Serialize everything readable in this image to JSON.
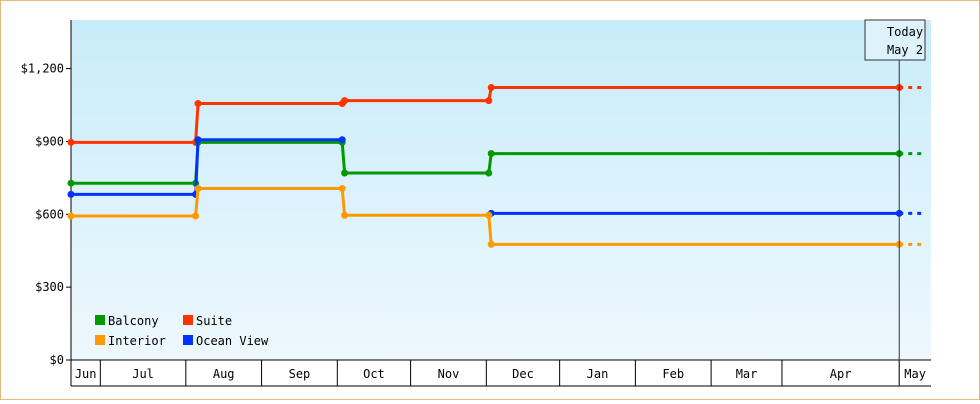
{
  "chart_data": {
    "type": "line",
    "step": true,
    "y_ticks": [
      "$0",
      "$300",
      "$600",
      "$900",
      "$1,200"
    ],
    "y_tick_values": [
      0,
      300,
      600,
      900,
      1200
    ],
    "ylim": [
      0,
      1400
    ],
    "x_range": [
      "2019-05-29",
      "2020-05-15"
    ],
    "months": [
      {
        "label": "Jun",
        "start": "2019-05-29",
        "end": "2019-06-10"
      },
      {
        "label": "Jul",
        "start": "2019-06-10",
        "end": "2019-07-15"
      },
      {
        "label": "Aug",
        "start": "2019-07-15",
        "end": "2019-08-15"
      },
      {
        "label": "Sep",
        "start": "2019-08-15",
        "end": "2019-09-15"
      },
      {
        "label": "Oct",
        "start": "2019-09-15",
        "end": "2019-10-15"
      },
      {
        "label": "Nov",
        "start": "2019-10-15",
        "end": "2019-11-15"
      },
      {
        "label": "Dec",
        "start": "2019-11-15",
        "end": "2019-12-15"
      },
      {
        "label": "Jan",
        "start": "2019-12-15",
        "end": "2020-01-15"
      },
      {
        "label": "Feb",
        "start": "2020-01-15",
        "end": "2020-02-15"
      },
      {
        "label": "Mar",
        "start": "2020-02-15",
        "end": "2020-03-15"
      },
      {
        "label": "Apr",
        "start": "2020-03-15",
        "end": "2020-05-02"
      },
      {
        "label": "May",
        "start": "2020-05-02",
        "end": "2020-05-15"
      }
    ],
    "today": {
      "date": "2020-05-02",
      "label_line1": "Today",
      "label_line2": "May 2"
    },
    "dashed_until": "2020-05-12",
    "series": [
      {
        "name": "Suite",
        "color": "#ff3300",
        "points": [
          {
            "x": "2019-05-29",
            "y": 896
          },
          {
            "x": "2019-07-19",
            "y": 896
          },
          {
            "x": "2019-07-20",
            "y": 1056
          },
          {
            "x": "2019-09-17",
            "y": 1056
          },
          {
            "x": "2019-09-18",
            "y": 1068
          },
          {
            "x": "2019-11-16",
            "y": 1068
          },
          {
            "x": "2019-11-17",
            "y": 1122
          },
          {
            "x": "2020-05-02",
            "y": 1122
          }
        ]
      },
      {
        "name": "Balcony",
        "color": "#009900",
        "points": [
          {
            "x": "2019-05-29",
            "y": 728
          },
          {
            "x": "2019-07-19",
            "y": 728
          },
          {
            "x": "2019-07-20",
            "y": 896
          },
          {
            "x": "2019-09-17",
            "y": 896
          },
          {
            "x": "2019-09-18",
            "y": 770
          },
          {
            "x": "2019-11-16",
            "y": 770
          },
          {
            "x": "2019-11-17",
            "y": 850
          },
          {
            "x": "2020-05-02",
            "y": 850
          }
        ]
      },
      {
        "name": "Ocean View",
        "color": "#0033ff",
        "points": [
          {
            "x": "2019-05-29",
            "y": 682
          },
          {
            "x": "2019-07-19",
            "y": 682
          },
          {
            "x": "2019-07-20",
            "y": 907
          },
          {
            "x": "2019-09-17",
            "y": 907
          },
          {
            "x": "2019-11-16",
            "y": 907,
            "hidden_segment": true
          },
          {
            "x": "2019-11-17",
            "y": 604
          },
          {
            "x": "2020-05-02",
            "y": 604
          }
        ]
      },
      {
        "name": "Interior",
        "color": "#ff9900",
        "points": [
          {
            "x": "2019-05-29",
            "y": 593
          },
          {
            "x": "2019-07-19",
            "y": 593
          },
          {
            "x": "2019-07-20",
            "y": 706
          },
          {
            "x": "2019-09-17",
            "y": 706
          },
          {
            "x": "2019-09-18",
            "y": 596
          },
          {
            "x": "2019-11-16",
            "y": 596
          },
          {
            "x": "2019-11-17",
            "y": 476
          },
          {
            "x": "2020-05-02",
            "y": 476
          }
        ]
      }
    ],
    "legend": [
      {
        "name": "Balcony",
        "color": "#009900"
      },
      {
        "name": "Suite",
        "color": "#ff3300"
      },
      {
        "name": "Interior",
        "color": "#ff9900"
      },
      {
        "name": "Ocean View",
        "color": "#0033ff"
      }
    ],
    "legend_position": "bottom-left",
    "grid": false
  }
}
